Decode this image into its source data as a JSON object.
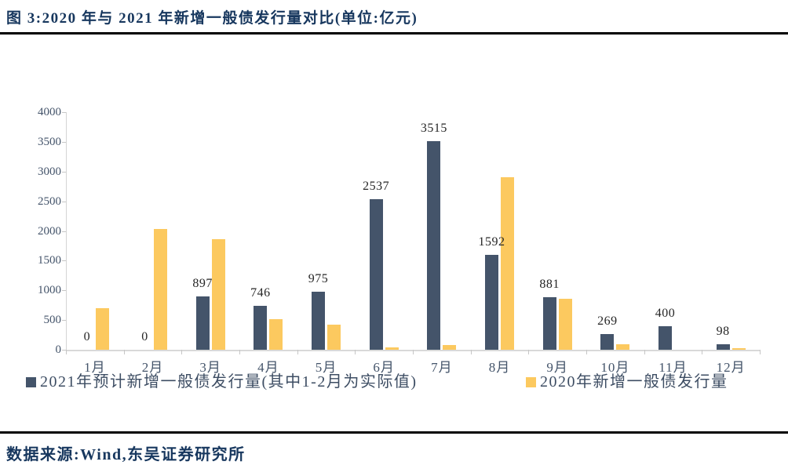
{
  "figure": {
    "title": "图 3:2020 年与 2021 年新增一般债发行量对比(单位:亿元)",
    "source": "数据来源:Wind,东吴证券研究所"
  },
  "colors": {
    "title_navy": "#17375E",
    "series_2021": "#44546A",
    "series_2020": "#FCC95F",
    "axis_line": "#D9D9D9",
    "axis_label": "#44546A",
    "data_label": "#262626"
  },
  "chart_data": {
    "type": "bar",
    "title": "2020 年与 2021 年新增一般债发行量对比",
    "unit": "亿元",
    "categories": [
      "1月",
      "2月",
      "3月",
      "4月",
      "5月",
      "6月",
      "7月",
      "8月",
      "9月",
      "10月",
      "11月",
      "12月"
    ],
    "series": [
      {
        "name": "2021年预计新增一般债发行量(其中1-2月为实际值)",
        "color": "#44546A",
        "values": [
          0,
          0,
          897,
          746,
          975,
          2537,
          3515,
          1592,
          881,
          269,
          400,
          98
        ],
        "data_labels": [
          "0",
          "0",
          "897",
          "746",
          "975",
          "2537",
          "3515",
          "1592",
          "881",
          "269",
          "400",
          "98"
        ]
      },
      {
        "name": "2020年新增一般债发行量",
        "color": "#FCC95F",
        "values": [
          700,
          2030,
          1860,
          510,
          420,
          40,
          75,
          2900,
          860,
          90,
          0,
          30
        ],
        "data_labels": []
      }
    ],
    "ylim": [
      0,
      4000
    ],
    "ytick_interval": 500,
    "ytick_labels": [
      "0",
      "500",
      "1000",
      "1500",
      "2000",
      "2500",
      "3000",
      "3500",
      "4000"
    ],
    "grid": false,
    "legend_position": "bottom"
  }
}
